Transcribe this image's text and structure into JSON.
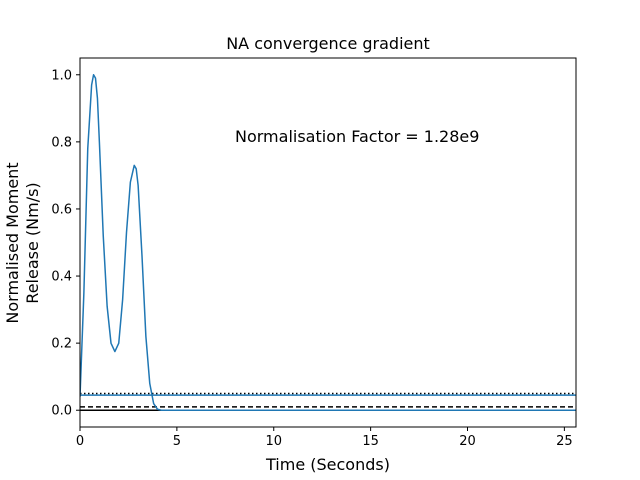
{
  "chart_data": {
    "type": "line",
    "title": "NA convergence gradient",
    "xlabel": "Time (Seconds)",
    "ylabel_lines": [
      "Normalised Moment",
      "Release (Nm/s)"
    ],
    "xlim": [
      0,
      25.6
    ],
    "ylim": [
      -0.05,
      1.05
    ],
    "xticks": [
      0,
      5,
      10,
      15,
      20,
      25
    ],
    "yticks": [
      0.0,
      0.2,
      0.4,
      0.6,
      0.8,
      1.0
    ],
    "xtick_labels": [
      "0",
      "5",
      "10",
      "15",
      "20",
      "25"
    ],
    "ytick_labels": [
      "0.0",
      "0.2",
      "0.4",
      "0.6",
      "0.8",
      "1.0"
    ],
    "annotation": "Normalisation Factor = 1.28e9",
    "series": [
      {
        "color": "#1f77b4",
        "x": [
          0,
          0.2,
          0.4,
          0.6,
          0.7,
          0.8,
          0.9,
          1.0,
          1.2,
          1.4,
          1.6,
          1.8,
          2.0,
          2.2,
          2.4,
          2.6,
          2.8,
          2.9,
          3.0,
          3.2,
          3.4,
          3.6,
          3.8,
          4.0,
          4.2,
          4.6,
          5.0,
          10,
          15,
          20,
          25.6
        ],
        "y": [
          0.04,
          0.35,
          0.78,
          0.97,
          1.0,
          0.99,
          0.93,
          0.8,
          0.52,
          0.31,
          0.2,
          0.175,
          0.2,
          0.33,
          0.53,
          0.68,
          0.73,
          0.72,
          0.67,
          0.46,
          0.22,
          0.08,
          0.02,
          0.003,
          0.0,
          0.0,
          0.0,
          0.0,
          0.0,
          0.0,
          0.0
        ]
      },
      {
        "color": "#1f77b4",
        "style": "solid",
        "x": [
          0,
          25.6
        ],
        "y": [
          0.045,
          0.045
        ]
      }
    ],
    "reference_lines": [
      {
        "y": 0.05,
        "style": "dotted",
        "color": "#000000"
      },
      {
        "y": 0.01,
        "style": "dashed",
        "color": "#000000"
      },
      {
        "y": 0.0,
        "style": "solid",
        "color": "#000000"
      }
    ]
  }
}
